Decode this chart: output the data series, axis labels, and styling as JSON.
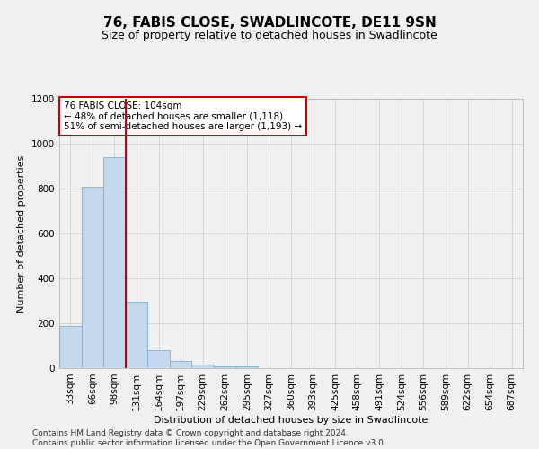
{
  "title": "76, FABIS CLOSE, SWADLINCOTE, DE11 9SN",
  "subtitle": "Size of property relative to detached houses in Swadlincote",
  "xlabel": "Distribution of detached houses by size in Swadlincote",
  "ylabel": "Number of detached properties",
  "categories": [
    "33sqm",
    "66sqm",
    "98sqm",
    "131sqm",
    "164sqm",
    "197sqm",
    "229sqm",
    "262sqm",
    "295sqm",
    "327sqm",
    "360sqm",
    "393sqm",
    "425sqm",
    "458sqm",
    "491sqm",
    "524sqm",
    "556sqm",
    "589sqm",
    "622sqm",
    "654sqm",
    "687sqm"
  ],
  "values": [
    190,
    810,
    940,
    295,
    82,
    33,
    18,
    10,
    8,
    0,
    0,
    0,
    0,
    0,
    0,
    0,
    0,
    0,
    0,
    0,
    0
  ],
  "bar_color": "#c5d9ee",
  "bar_edge_color": "#7bafd4",
  "vline_color": "#cc0000",
  "vline_x_index": 2,
  "annotation_text": "76 FABIS CLOSE: 104sqm\n← 48% of detached houses are smaller (1,118)\n51% of semi-detached houses are larger (1,193) →",
  "annotation_box_color": "#ffffff",
  "annotation_box_edge": "#cc0000",
  "ylim": [
    0,
    1200
  ],
  "yticks": [
    0,
    200,
    400,
    600,
    800,
    1000,
    1200
  ],
  "footer_line1": "Contains HM Land Registry data © Crown copyright and database right 2024.",
  "footer_line2": "Contains public sector information licensed under the Open Government Licence v3.0.",
  "bg_color": "#f0f0f0",
  "grid_color": "#d0d0d0",
  "title_fontsize": 11,
  "subtitle_fontsize": 9,
  "axis_label_fontsize": 8,
  "tick_fontsize": 7.5,
  "annotation_fontsize": 7.5,
  "footer_fontsize": 6.5
}
